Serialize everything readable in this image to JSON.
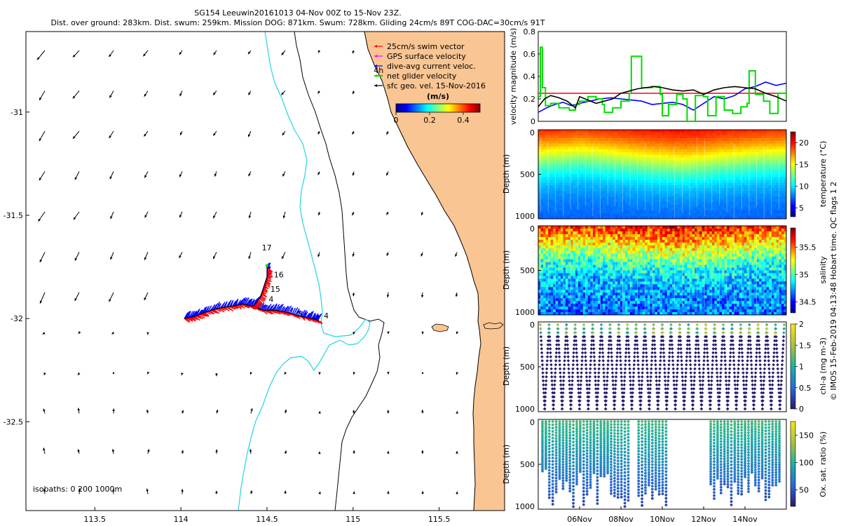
{
  "header": {
    "title_line1": "SG154 Leeuwin20161013 04-Nov 00Z to 15-Nov 23Z.",
    "title_line2": "Dist. over ground: 283km. Dist. swum: 259km. Mission DOG: 871km. Swum: 728km. Gliding 24cm/s 89T COG-DAC=30cm/s 91T"
  },
  "footer_note": "© IMOS 15-Feb-2019 04:13:48 Hobart time. QC flags 1  2",
  "colors": {
    "land": "#f9c592",
    "isobath_shallow": "#000000",
    "isobath_deep": "#22d3e6",
    "swim_vector": "#ff0000",
    "gps_velocity": "#ff00ff",
    "dac": "#0000ff",
    "net_velocity": "#00dd00",
    "sfc_geo": "#000000"
  },
  "chart_data": [
    {
      "type": "map",
      "name": "track-map",
      "xlim": [
        113.1,
        115.88
      ],
      "ylim": [
        -32.93,
        -30.61
      ],
      "x_ticks": [
        "113.5",
        "114",
        "114.5",
        "115",
        "115.5"
      ],
      "x_tick_values": [
        113.5,
        114,
        114.5,
        115,
        115.5
      ],
      "y_ticks": [
        "-31",
        "-31.5",
        "-32",
        "-32.5"
      ],
      "y_tick_values": [
        -31,
        -31.5,
        -32,
        -32.5
      ],
      "legend": [
        {
          "label": "25cm/s swim vector",
          "color": "#ff0000"
        },
        {
          "label": "GPS surface velocity",
          "color": "#ff00ff"
        },
        {
          "label": "dive-avg current veloc.",
          "color": "#0000ff"
        },
        {
          "label": "net glider velocity",
          "color": "#00dd00"
        },
        {
          "label": "sfc geo. vel. 15-Nov-2016",
          "color": "#000000"
        }
      ],
      "colorbar": {
        "label": "(m/s)",
        "ticks": [
          "0",
          "0.2",
          "0.4"
        ],
        "tick_values": [
          0,
          0.2,
          0.4
        ],
        "range": [
          0,
          0.5
        ]
      },
      "isobaths_note": "isobaths: 0   200  1000m",
      "annotations": [
        {
          "text": "4h",
          "lon": 115.12,
          "lat": -30.81
        },
        {
          "text": "17",
          "lon": 114.47,
          "lat": -31.67
        },
        {
          "text": "16",
          "lon": 114.54,
          "lat": -31.8
        },
        {
          "text": "15",
          "lon": 114.52,
          "lat": -31.87
        },
        {
          "text": "4",
          "lon": 114.51,
          "lat": -31.92
        },
        {
          "text": "5",
          "lon": 114.68,
          "lat": -31.99
        },
        {
          "text": "4",
          "lon": 114.83,
          "lat": -32.0
        }
      ],
      "track": [
        [
          114.02,
          -32.0
        ],
        [
          114.08,
          -31.99
        ],
        [
          114.14,
          -31.97
        ],
        [
          114.22,
          -31.95
        ],
        [
          114.3,
          -31.94
        ],
        [
          114.36,
          -31.93
        ],
        [
          114.42,
          -31.94
        ],
        [
          114.48,
          -31.96
        ],
        [
          114.55,
          -31.96
        ],
        [
          114.62,
          -31.97
        ],
        [
          114.7,
          -31.99
        ],
        [
          114.76,
          -32.0
        ],
        [
          114.8,
          -32.01
        ]
      ],
      "track_branch": [
        [
          114.42,
          -31.94
        ],
        [
          114.46,
          -31.9
        ],
        [
          114.48,
          -31.85
        ],
        [
          114.5,
          -31.8
        ],
        [
          114.5,
          -31.75
        ]
      ]
    },
    {
      "type": "line",
      "name": "velocity-magnitude",
      "ylabel": "velocity magnitude (m/s)",
      "ylim": [
        0,
        0.8
      ],
      "y_ticks": [
        "0",
        "0.2",
        "0.4",
        "0.6",
        "0.8"
      ],
      "y_tick_values": [
        0,
        0.2,
        0.4,
        0.6,
        0.8
      ],
      "x_days": [
        4.0,
        16.0
      ],
      "series": [
        {
          "name": "swim vector",
          "color": "#ff0000",
          "x": [
            4.0,
            16.0
          ],
          "y": [
            0.25,
            0.25
          ]
        },
        {
          "name": "dive-avg current",
          "color": "#0000ff",
          "x": [
            4.0,
            4.4,
            4.8,
            5.2,
            5.6,
            6.0,
            6.5,
            7.0,
            7.5,
            8.0,
            8.5,
            9.0,
            9.5,
            10.0,
            10.5,
            11.0,
            11.5,
            12.0,
            12.5,
            13.0,
            13.5,
            14.0,
            14.5,
            15.0,
            15.5,
            16.0
          ],
          "y": [
            0.08,
            0.12,
            0.15,
            0.17,
            0.14,
            0.16,
            0.18,
            0.2,
            0.21,
            0.2,
            0.19,
            0.18,
            0.15,
            0.16,
            0.17,
            0.15,
            0.1,
            0.16,
            0.22,
            0.2,
            0.23,
            0.29,
            0.31,
            0.35,
            0.32,
            0.34
          ]
        },
        {
          "name": "net glider velocity",
          "color": "#00dd00",
          "x": [
            4.0,
            4.1,
            4.2,
            4.35,
            4.6,
            5.0,
            5.5,
            5.8,
            6.0,
            6.4,
            6.8,
            7.1,
            7.2,
            7.6,
            8.0,
            8.4,
            8.5,
            9.0,
            9.5,
            9.9,
            10.0,
            10.3,
            10.7,
            11.0,
            11.2,
            11.6,
            12.0,
            12.2,
            12.6,
            13.0,
            13.4,
            13.8,
            14.1,
            14.2,
            14.5,
            14.9,
            15.2,
            15.6,
            16.0
          ],
          "y": [
            0.22,
            0.66,
            0.3,
            0.14,
            0.16,
            0.12,
            0.1,
            0.15,
            0.18,
            0.22,
            0.2,
            0.15,
            0.08,
            0.12,
            0.18,
            0.25,
            0.58,
            0.3,
            0.31,
            0.24,
            0.05,
            0.15,
            0.24,
            0.2,
            0.0,
            0.23,
            0.22,
            0.05,
            0.22,
            0.1,
            0.07,
            0.13,
            0.16,
            0.45,
            0.24,
            0.18,
            0.07,
            0.25,
            0.22
          ]
        },
        {
          "name": "sfc geo vel",
          "color": "#000000",
          "x": [
            4.0,
            4.3,
            4.6,
            5.0,
            5.4,
            5.8,
            6.0,
            6.4,
            6.8,
            7.2,
            7.6,
            8.0,
            8.4,
            8.8,
            9.2,
            9.6,
            10.0,
            10.5,
            11.0,
            11.5,
            12.0,
            12.5,
            13.0,
            13.5,
            14.0,
            14.5,
            15.0,
            15.5,
            16.0
          ],
          "y": [
            0.13,
            0.2,
            0.23,
            0.21,
            0.18,
            0.12,
            0.22,
            0.19,
            0.16,
            0.18,
            0.2,
            0.25,
            0.27,
            0.29,
            0.3,
            0.31,
            0.3,
            0.28,
            0.27,
            0.28,
            0.24,
            0.28,
            0.3,
            0.31,
            0.3,
            0.29,
            0.25,
            0.22,
            0.18
          ]
        }
      ]
    },
    {
      "type": "heatmap",
      "name": "temperature",
      "ylabel": "Depth (m)",
      "colorbar_label": "temperature (°C)",
      "y_ticks": [
        "0",
        "500",
        "1000"
      ],
      "y_tick_values": [
        0,
        500,
        1000
      ],
      "cbar_ticks": [
        "20",
        "15",
        "10",
        "5"
      ],
      "cbar_tick_values": [
        20,
        15,
        10,
        5
      ],
      "cbar_range": [
        3,
        22.5
      ],
      "surface_value": 21,
      "bottom_value": 4,
      "thermocline_depth": [
        320,
        300,
        280,
        300,
        330,
        360,
        380,
        400,
        380,
        350,
        330,
        310,
        300
      ],
      "columns": 100
    },
    {
      "type": "heatmap",
      "name": "salinity",
      "ylabel": "Depth (m)",
      "colorbar_label": "salinity",
      "y_ticks": [
        "0",
        "500",
        "1000"
      ],
      "y_tick_values": [
        0,
        500,
        1000
      ],
      "cbar_ticks": [
        "35.5",
        "35",
        "34.5"
      ],
      "cbar_tick_values": [
        35.5,
        35,
        34.5
      ],
      "cbar_range": [
        34.3,
        35.85
      ],
      "surface_value": 35.8,
      "bottom_value": 34.4,
      "thermocline_depth": [
        230,
        220,
        210,
        230,
        250,
        270,
        300,
        320,
        300,
        280,
        250,
        230,
        220
      ],
      "columns": 100
    },
    {
      "type": "scatter",
      "name": "chl-a",
      "ylabel": "Depth (m)",
      "colorbar_label": "chl-a (mg m-3)",
      "y_ticks": [
        "0",
        "500",
        "1000"
      ],
      "y_tick_values": [
        0,
        500,
        1000
      ],
      "cbar_ticks": [
        "2",
        "1.5",
        "1",
        "0.5",
        "0"
      ],
      "cbar_tick_values": [
        2,
        1.5,
        1,
        0.5,
        0
      ],
      "cbar_range": [
        0,
        2
      ],
      "dive_count": 56
    },
    {
      "type": "scatter",
      "name": "oxygen",
      "ylabel": "Depth (m)",
      "colorbar_label": "Ox. sat. ratio (%)",
      "y_ticks": [
        "0",
        "500",
        "1000"
      ],
      "y_tick_values": [
        0,
        500,
        1000
      ],
      "cbar_ticks": [
        "150",
        "100",
        "50"
      ],
      "cbar_tick_values": [
        150,
        100,
        50
      ],
      "cbar_range": [
        20,
        175
      ],
      "x_ticks": [
        "06Nov",
        "08Nov",
        "10Nov",
        "12Nov",
        "14Nov"
      ],
      "x_tick_days": [
        6,
        8,
        10,
        12,
        14
      ]
    }
  ]
}
